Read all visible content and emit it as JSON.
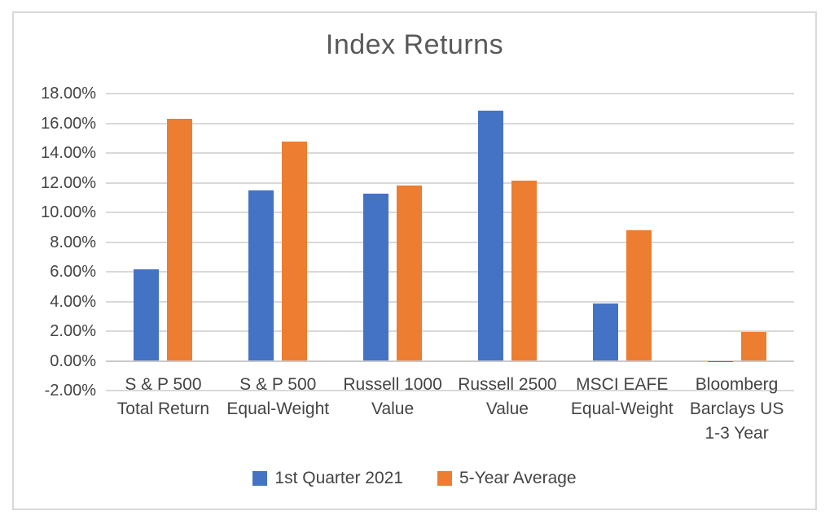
{
  "chart_data": {
    "type": "bar",
    "title": "Index Returns",
    "categories": [
      [
        "S & P 500",
        "Total Return"
      ],
      [
        "S & P 500",
        "Equal-Weight"
      ],
      [
        "Russell 1000",
        "Value"
      ],
      [
        "Russell 2500",
        "Value"
      ],
      [
        "MSCI EAFE",
        "Equal-Weight"
      ],
      [
        "Bloomberg",
        "Barclays US",
        "1-3 Year"
      ]
    ],
    "series": [
      {
        "name": "1st Quarter 2021",
        "color": "#4472C4",
        "values": [
          6.17,
          11.49,
          11.26,
          16.83,
          3.85,
          -0.06
        ]
      },
      {
        "name": "5-Year Average",
        "color": "#ED7D31",
        "values": [
          16.3,
          14.74,
          11.8,
          12.15,
          8.8,
          1.92
        ]
      }
    ],
    "y_axis": {
      "min": -2,
      "max": 18,
      "step": 2,
      "tick_labels": [
        "18.00%",
        "16.00%",
        "14.00%",
        "12.00%",
        "10.00%",
        "8.00%",
        "6.00%",
        "4.00%",
        "2.00%",
        "0.00%",
        "-2.00%"
      ]
    },
    "grid": true,
    "legend_position": "bottom",
    "colors": {
      "gridline": "#D9D9D9",
      "axis_line": "#C9C9C9",
      "title_text": "#595959",
      "label_text": "#444444",
      "frame_border": "#D9D9D9"
    }
  }
}
